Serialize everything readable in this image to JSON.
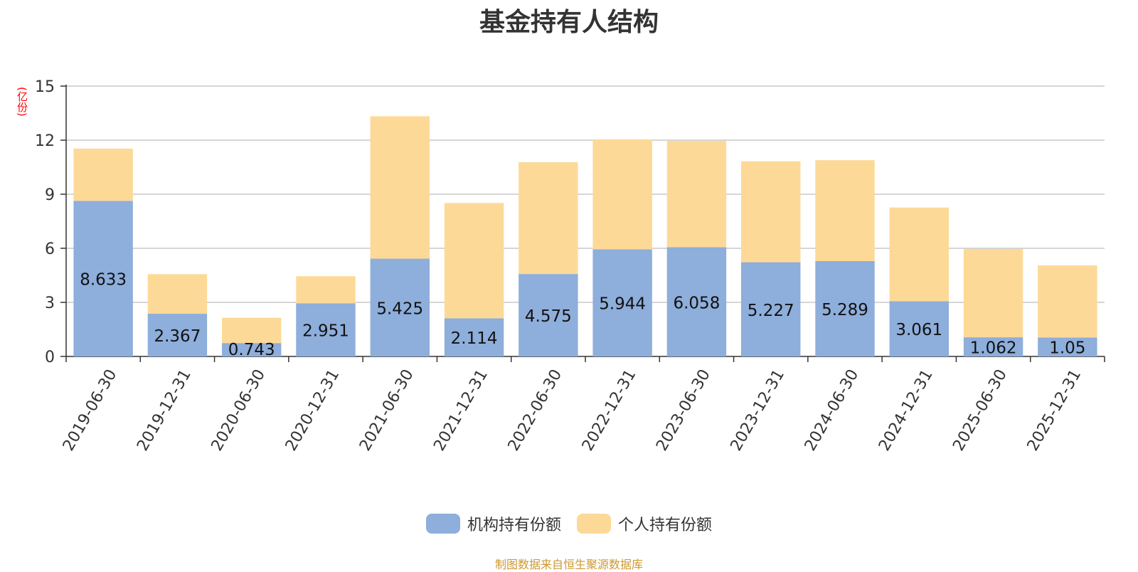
{
  "chart_data": {
    "type": "bar",
    "stacked": true,
    "title": "基金持有人结构",
    "y_unit": "(亿份)",
    "ylim": [
      0,
      15
    ],
    "yticks": [
      0,
      3,
      6,
      9,
      12,
      15
    ],
    "grid": true,
    "legend_position": "bottom",
    "categories": [
      "2019-06-30",
      "2019-12-31",
      "2020-06-30",
      "2020-12-31",
      "2021-06-30",
      "2021-12-31",
      "2022-06-30",
      "2022-12-31",
      "2023-06-30",
      "2023-12-31",
      "2024-06-30",
      "2024-12-31",
      "2025-06-30",
      "2025-12-31"
    ],
    "series": [
      {
        "name": "机构持有份额",
        "color": "#8eaedb",
        "values": [
          8.633,
          2.367,
          0.743,
          2.951,
          5.425,
          2.114,
          4.575,
          5.944,
          6.058,
          5.227,
          5.289,
          3.061,
          1.062,
          1.05
        ]
      },
      {
        "name": "个人持有份额",
        "color": "#fdd998",
        "values": [
          2.9,
          2.2,
          1.4,
          1.5,
          7.9,
          6.4,
          6.2,
          6.1,
          5.9,
          5.6,
          5.6,
          5.2,
          4.9,
          4.0
        ]
      }
    ],
    "data_labels_series": 0
  },
  "source": "制图数据来自恒生聚源数据库"
}
